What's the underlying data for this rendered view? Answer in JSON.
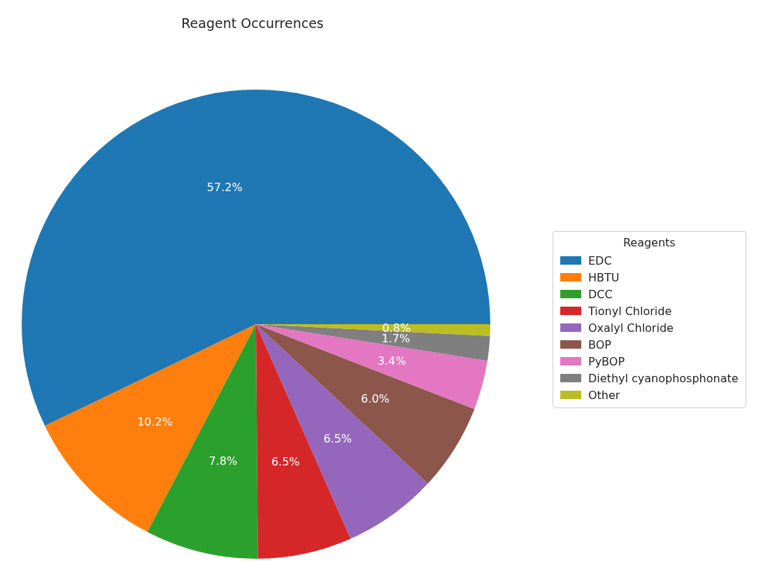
{
  "chart_data": {
    "type": "pie",
    "title": "Reagent Occurrences",
    "legend_title": "Reagents",
    "legend": "right",
    "categories": [
      "EDC",
      "HBTU",
      "DCC",
      "Tionyl Chloride",
      "Oxalyl Chloride",
      "BOP",
      "PyBOP",
      "Diethyl cyanophosphonate",
      "Other"
    ],
    "values": [
      57.2,
      10.2,
      7.8,
      6.5,
      6.5,
      6.0,
      3.4,
      1.7,
      0.8
    ],
    "value_labels": [
      "57.2%",
      "10.2%",
      "7.8%",
      "6.5%",
      "6.5%",
      "6.0%",
      "3.4%",
      "1.7%",
      "0.8%"
    ],
    "colors": [
      "#1f77b4",
      "#ff7f0e",
      "#2ca02c",
      "#d62728",
      "#9467bd",
      "#8c564b",
      "#e377c2",
      "#7f7f7f",
      "#bcbd22"
    ]
  }
}
